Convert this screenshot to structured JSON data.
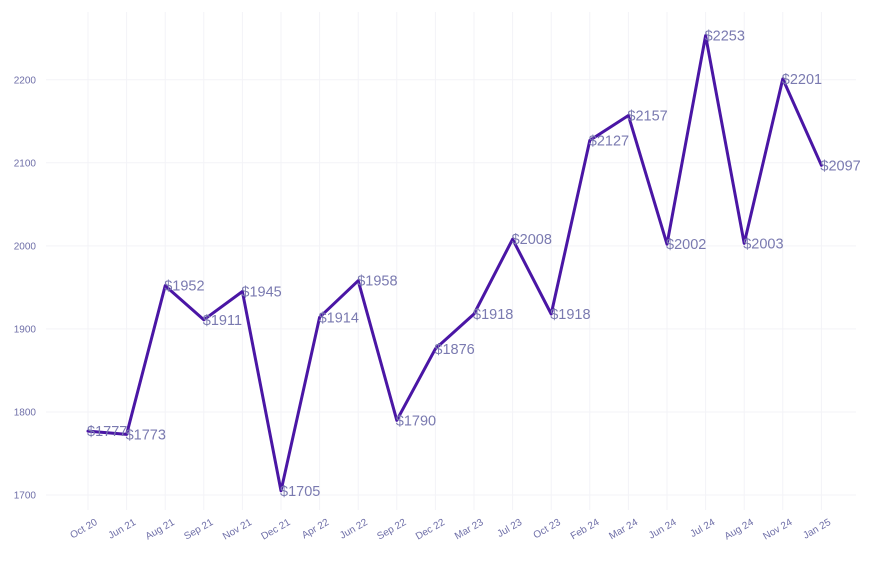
{
  "chart_data": {
    "type": "line",
    "title": "",
    "xlabel": "",
    "ylabel": "",
    "categories": [
      "Oct 20",
      "Jun 21",
      "Aug 21",
      "Sep 21",
      "Nov 21",
      "Dec 21",
      "Apr 22",
      "Jun 22",
      "Sep 22",
      "Dec 22",
      "Mar 23",
      "Jul 23",
      "Oct 23",
      "Feb 24",
      "Mar 24",
      "Jun 24",
      "Jul 24",
      "Aug 24",
      "Nov 24",
      "Jan 25"
    ],
    "values": [
      1777,
      1773,
      1952,
      1911,
      1945,
      1705,
      1914,
      1958,
      1790,
      1876,
      1918,
      2008,
      1918,
      2127,
      2157,
      2002,
      2253,
      2003,
      2201,
      2097
    ],
    "data_label_prefix": "$",
    "yticks": [
      1700,
      1800,
      1900,
      2000,
      2100,
      2200
    ],
    "ylim": [
      1670,
      2280
    ],
    "grid": true,
    "legend": "none",
    "line_color": "#4a16a5"
  }
}
